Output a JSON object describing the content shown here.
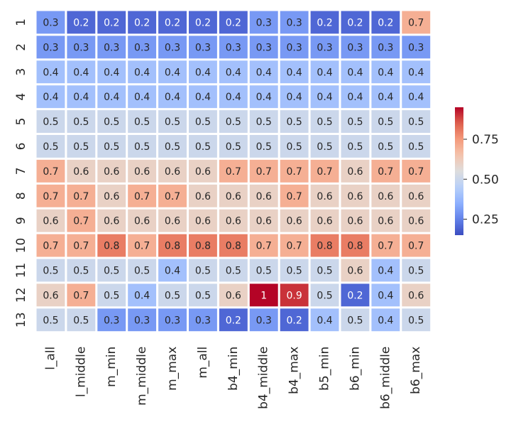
{
  "chart_data": {
    "type": "heatmap",
    "title": "",
    "xlabel": "",
    "ylabel": "",
    "rows": [
      "1",
      "2",
      "3",
      "4",
      "5",
      "6",
      "7",
      "8",
      "9",
      "10",
      "11",
      "12",
      "13"
    ],
    "columns": [
      "l_all",
      "l_middle",
      "m_min",
      "m_middle",
      "m_max",
      "m_all",
      "b4_min",
      "b4_middle",
      "b4_max",
      "b5_min",
      "b6_min",
      "b6_middle",
      "b6_max"
    ],
    "values": [
      [
        0.3,
        0.2,
        0.2,
        0.2,
        0.2,
        0.2,
        0.2,
        0.3,
        0.3,
        0.2,
        0.2,
        0.2,
        0.7
      ],
      [
        0.3,
        0.3,
        0.3,
        0.3,
        0.3,
        0.3,
        0.3,
        0.3,
        0.3,
        0.3,
        0.3,
        0.3,
        0.3
      ],
      [
        0.4,
        0.4,
        0.4,
        0.4,
        0.4,
        0.4,
        0.4,
        0.4,
        0.4,
        0.4,
        0.4,
        0.4,
        0.4
      ],
      [
        0.4,
        0.4,
        0.4,
        0.4,
        0.4,
        0.4,
        0.4,
        0.4,
        0.4,
        0.4,
        0.4,
        0.4,
        0.4
      ],
      [
        0.5,
        0.5,
        0.5,
        0.5,
        0.5,
        0.5,
        0.5,
        0.5,
        0.5,
        0.5,
        0.5,
        0.5,
        0.5
      ],
      [
        0.5,
        0.5,
        0.5,
        0.5,
        0.5,
        0.5,
        0.5,
        0.5,
        0.5,
        0.5,
        0.5,
        0.5,
        0.5
      ],
      [
        0.7,
        0.6,
        0.6,
        0.6,
        0.6,
        0.6,
        0.7,
        0.7,
        0.7,
        0.7,
        0.6,
        0.7,
        0.7
      ],
      [
        0.7,
        0.7,
        0.6,
        0.7,
        0.7,
        0.6,
        0.6,
        0.6,
        0.7,
        0.6,
        0.6,
        0.6,
        0.6
      ],
      [
        0.6,
        0.7,
        0.6,
        0.6,
        0.6,
        0.6,
        0.6,
        0.6,
        0.6,
        0.6,
        0.6,
        0.6,
        0.6
      ],
      [
        0.7,
        0.7,
        0.8,
        0.7,
        0.8,
        0.8,
        0.8,
        0.7,
        0.7,
        0.8,
        0.8,
        0.7,
        0.7
      ],
      [
        0.5,
        0.5,
        0.5,
        0.5,
        0.4,
        0.5,
        0.5,
        0.5,
        0.5,
        0.5,
        0.6,
        0.4,
        0.5
      ],
      [
        0.6,
        0.7,
        0.5,
        0.4,
        0.5,
        0.5,
        0.6,
        1,
        0.9,
        0.5,
        0.2,
        0.4,
        0.6
      ],
      [
        0.5,
        0.5,
        0.3,
        0.3,
        0.3,
        0.3,
        0.2,
        0.3,
        0.2,
        0.4,
        0.5,
        0.4,
        0.5
      ]
    ],
    "colormap": "coolwarm",
    "colorbar": {
      "range": [
        0.15,
        0.95
      ],
      "ticks": [
        0.25,
        0.5,
        0.75
      ],
      "tick_labels": [
        "0.25",
        "0.50",
        "0.75"
      ],
      "placement": "right"
    },
    "grid": false,
    "cell_separator_color": "#ffffff"
  }
}
